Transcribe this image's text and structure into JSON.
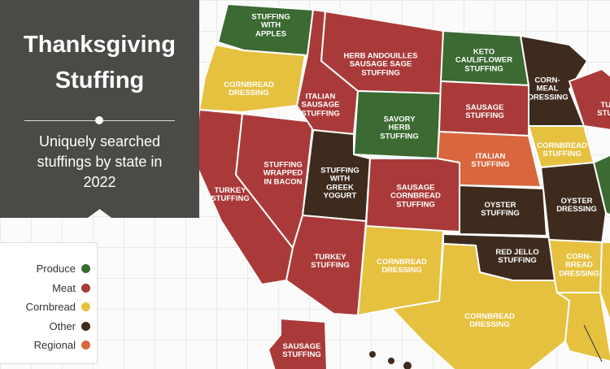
{
  "header": {
    "title": "Thanksgiving Stuffing",
    "subtitle": "Uniquely searched stuffings by state in 2022"
  },
  "groups": [
    {
      "name": "Produce",
      "color": "#3b6a33",
      "states": [
        "STUFFING WITH APPLES",
        "SAVORY HERB STUFFING",
        "KETO CAULIFLOWER STUFFING"
      ]
    },
    {
      "name": "Meat",
      "color": "#aa3a3a",
      "states": [
        "TURKEY STUFFING",
        "STUFFING WRAPPED IN BACON",
        "ITALIAN SAUSAGE STUFFING",
        "HERB ANDOUILLES SAUSAGE SAGE STUFFING",
        "SAUSAGE CORNBREAD STUFFING",
        "TURKEY STUFFING",
        "SAUSAGE STUFFING",
        "SAUSAGE STUFFING",
        "TURKEY STUFFING"
      ]
    },
    {
      "name": "Cornbread",
      "color": "#e6c140",
      "states": [
        "CORNBREAD DRESSING",
        "CORNBREAD DRESSING",
        "CORNBREAD DRESSING",
        "CORNBREAD STUFFING",
        "CORN- BREAD DRESSING"
      ]
    },
    {
      "name": "Other",
      "color": "#3e2b1e",
      "states": [
        "STUFFING WITH GREEK YOGURT",
        "OYSTER STUFFING",
        "RED JELLO STUFFING",
        "CORN- MEAL DRESSING",
        "OYSTER DRESSING"
      ]
    },
    {
      "name": "Regional",
      "color": "#d9663c",
      "states": [
        "ITALIAN STUFFING"
      ]
    }
  ]
}
